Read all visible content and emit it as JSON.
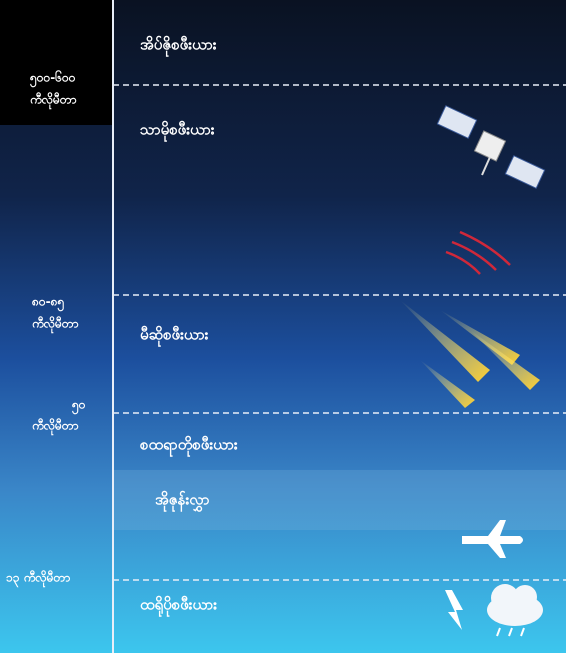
{
  "layers": [
    {
      "label": "အိပ်ဇိုစဖီးယား"
    },
    {
      "label": "သာမိုစဖီးယား"
    },
    {
      "label": "မီဆိုစဖီးယား"
    },
    {
      "label": "စထရာတိုစဖီးယား"
    },
    {
      "label": "အိုဇုန်းလွှာ"
    },
    {
      "label": "ထရိုပိုစဖီးယား"
    }
  ],
  "altitudes": [
    {
      "lines": [
        "၅၀၀-၆၀၀",
        "ကီလိုမီတာ"
      ]
    },
    {
      "lines": [
        "၈၀-၈၅",
        "ကီလိုမီတာ"
      ]
    },
    {
      "lines": [
        "၅၀",
        "ကီလိုမီတာ"
      ]
    },
    {
      "lines": [
        "၁၃ ကီလိုမီတာ"
      ]
    }
  ]
}
